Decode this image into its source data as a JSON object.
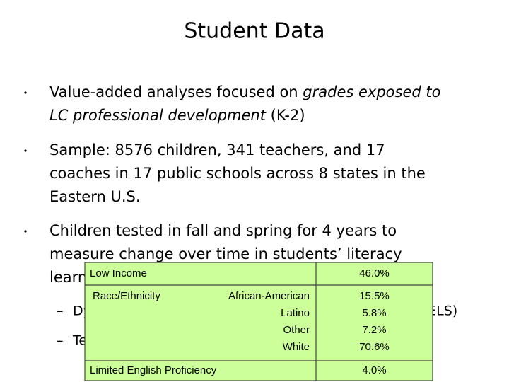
{
  "title": "Student Data",
  "bullets": [
    {
      "lines": [
        [
          {
            "text": "Value-added analyses focused on "
          },
          {
            "text": "grades exposed to",
            "italic": true
          }
        ],
        [
          {
            "text": "LC professional development",
            "italic": true
          },
          {
            "text": " (K-2)"
          }
        ]
      ]
    },
    {
      "lines": [
        [
          {
            "text": "Sample: 8576 children, 341 teachers, and 17"
          }
        ],
        [
          {
            "text": "coaches in 17 public schools across 8 states in the"
          }
        ],
        [
          {
            "text": "Eastern U.S."
          }
        ]
      ]
    },
    {
      "lines": [
        [
          {
            "text": "Children tested in fall and spring for 4 years to"
          }
        ],
        [
          {
            "text": "measure change over time in students’ literacy"
          }
        ],
        [
          {
            "text": "learning"
          }
        ]
      ]
    }
  ],
  "sub_bullets": [
    "Dynamic Indicators of Basic Early Literacy Skills (DIBELS)",
    "Terra Nova"
  ],
  "table": {
    "rows": [
      {
        "label": "Low Income",
        "value": "46.0%"
      },
      {
        "label": "Race/Ethnicity",
        "groups": [
          {
            "name": "African-American",
            "value": "15.5%"
          },
          {
            "name": "Latino",
            "value": "5.8%"
          },
          {
            "name": "Other",
            "value": "7.2%"
          },
          {
            "name": "White",
            "value": "70.6%"
          }
        ]
      },
      {
        "label": "Limited English Proficiency",
        "value": "4.0%"
      }
    ]
  }
}
